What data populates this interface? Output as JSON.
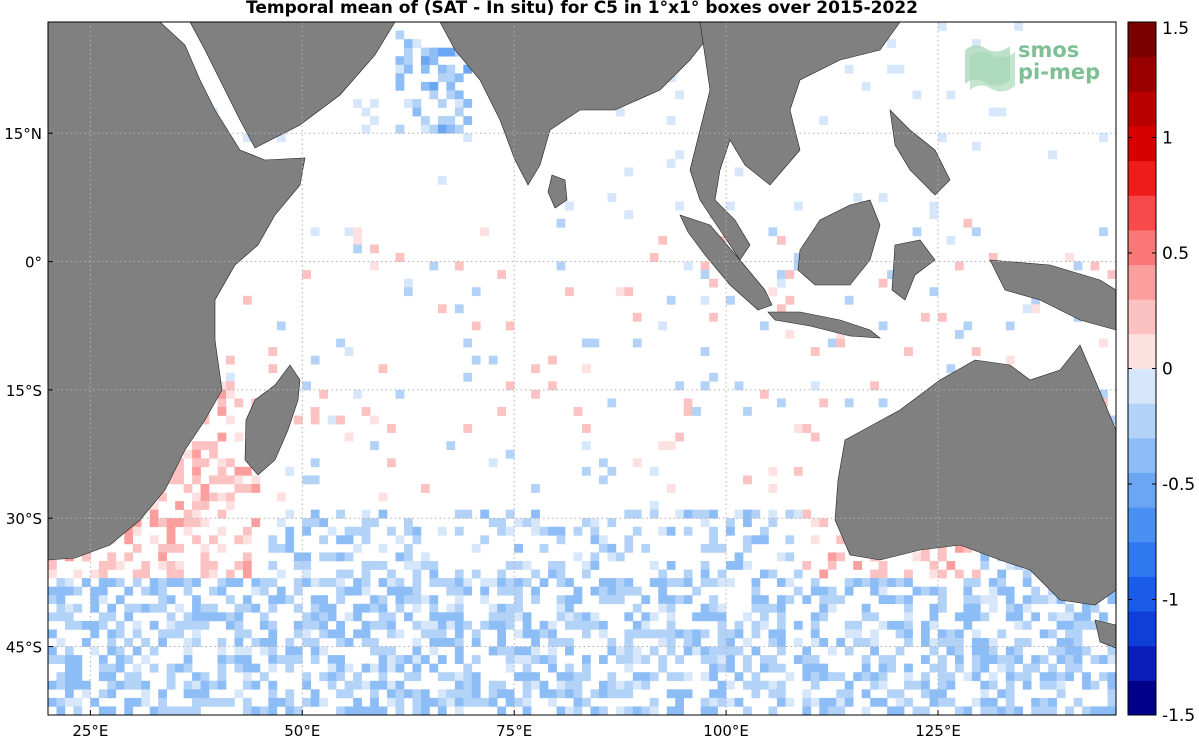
{
  "title": "Temporal mean of (SAT - In situ) for C5 in 1°x1° boxes over 2015-2022",
  "logo": {
    "line1": "smos",
    "line2": "pi-mep",
    "icon": "smos-wave-logo-icon",
    "color": "#7fbf95"
  },
  "x_ticks": [
    {
      "value": 25,
      "label": "25°E"
    },
    {
      "value": 50,
      "label": "50°E"
    },
    {
      "value": 75,
      "label": "75°E"
    },
    {
      "value": 100,
      "label": "100°E"
    },
    {
      "value": 125,
      "label": "125°E"
    }
  ],
  "y_ticks": [
    {
      "value": 15,
      "label": "15°N"
    },
    {
      "value": 0,
      "label": "0°"
    },
    {
      "value": -15,
      "label": "15°S"
    },
    {
      "value": -30,
      "label": "30°S"
    },
    {
      "value": -45,
      "label": "45°S"
    }
  ],
  "colorbar": {
    "range": [
      -1.5,
      1.5
    ],
    "levels": 20,
    "tick_labels": [
      {
        "value": 1.5,
        "label": "1.5"
      },
      {
        "value": 1,
        "label": "1"
      },
      {
        "value": 0.5,
        "label": "0.5"
      },
      {
        "value": 0,
        "label": "0"
      },
      {
        "value": -0.5,
        "label": "-0.5"
      },
      {
        "value": -1,
        "label": "-1"
      },
      {
        "value": -1.5,
        "label": "-1.5"
      }
    ]
  },
  "colors": {
    "land": "#808080",
    "ocean": "#ffffff",
    "grid": "#b0b0b0"
  },
  "map_extent": {
    "lon": [
      20,
      146
    ],
    "lat": [
      -53,
      28
    ]
  }
}
